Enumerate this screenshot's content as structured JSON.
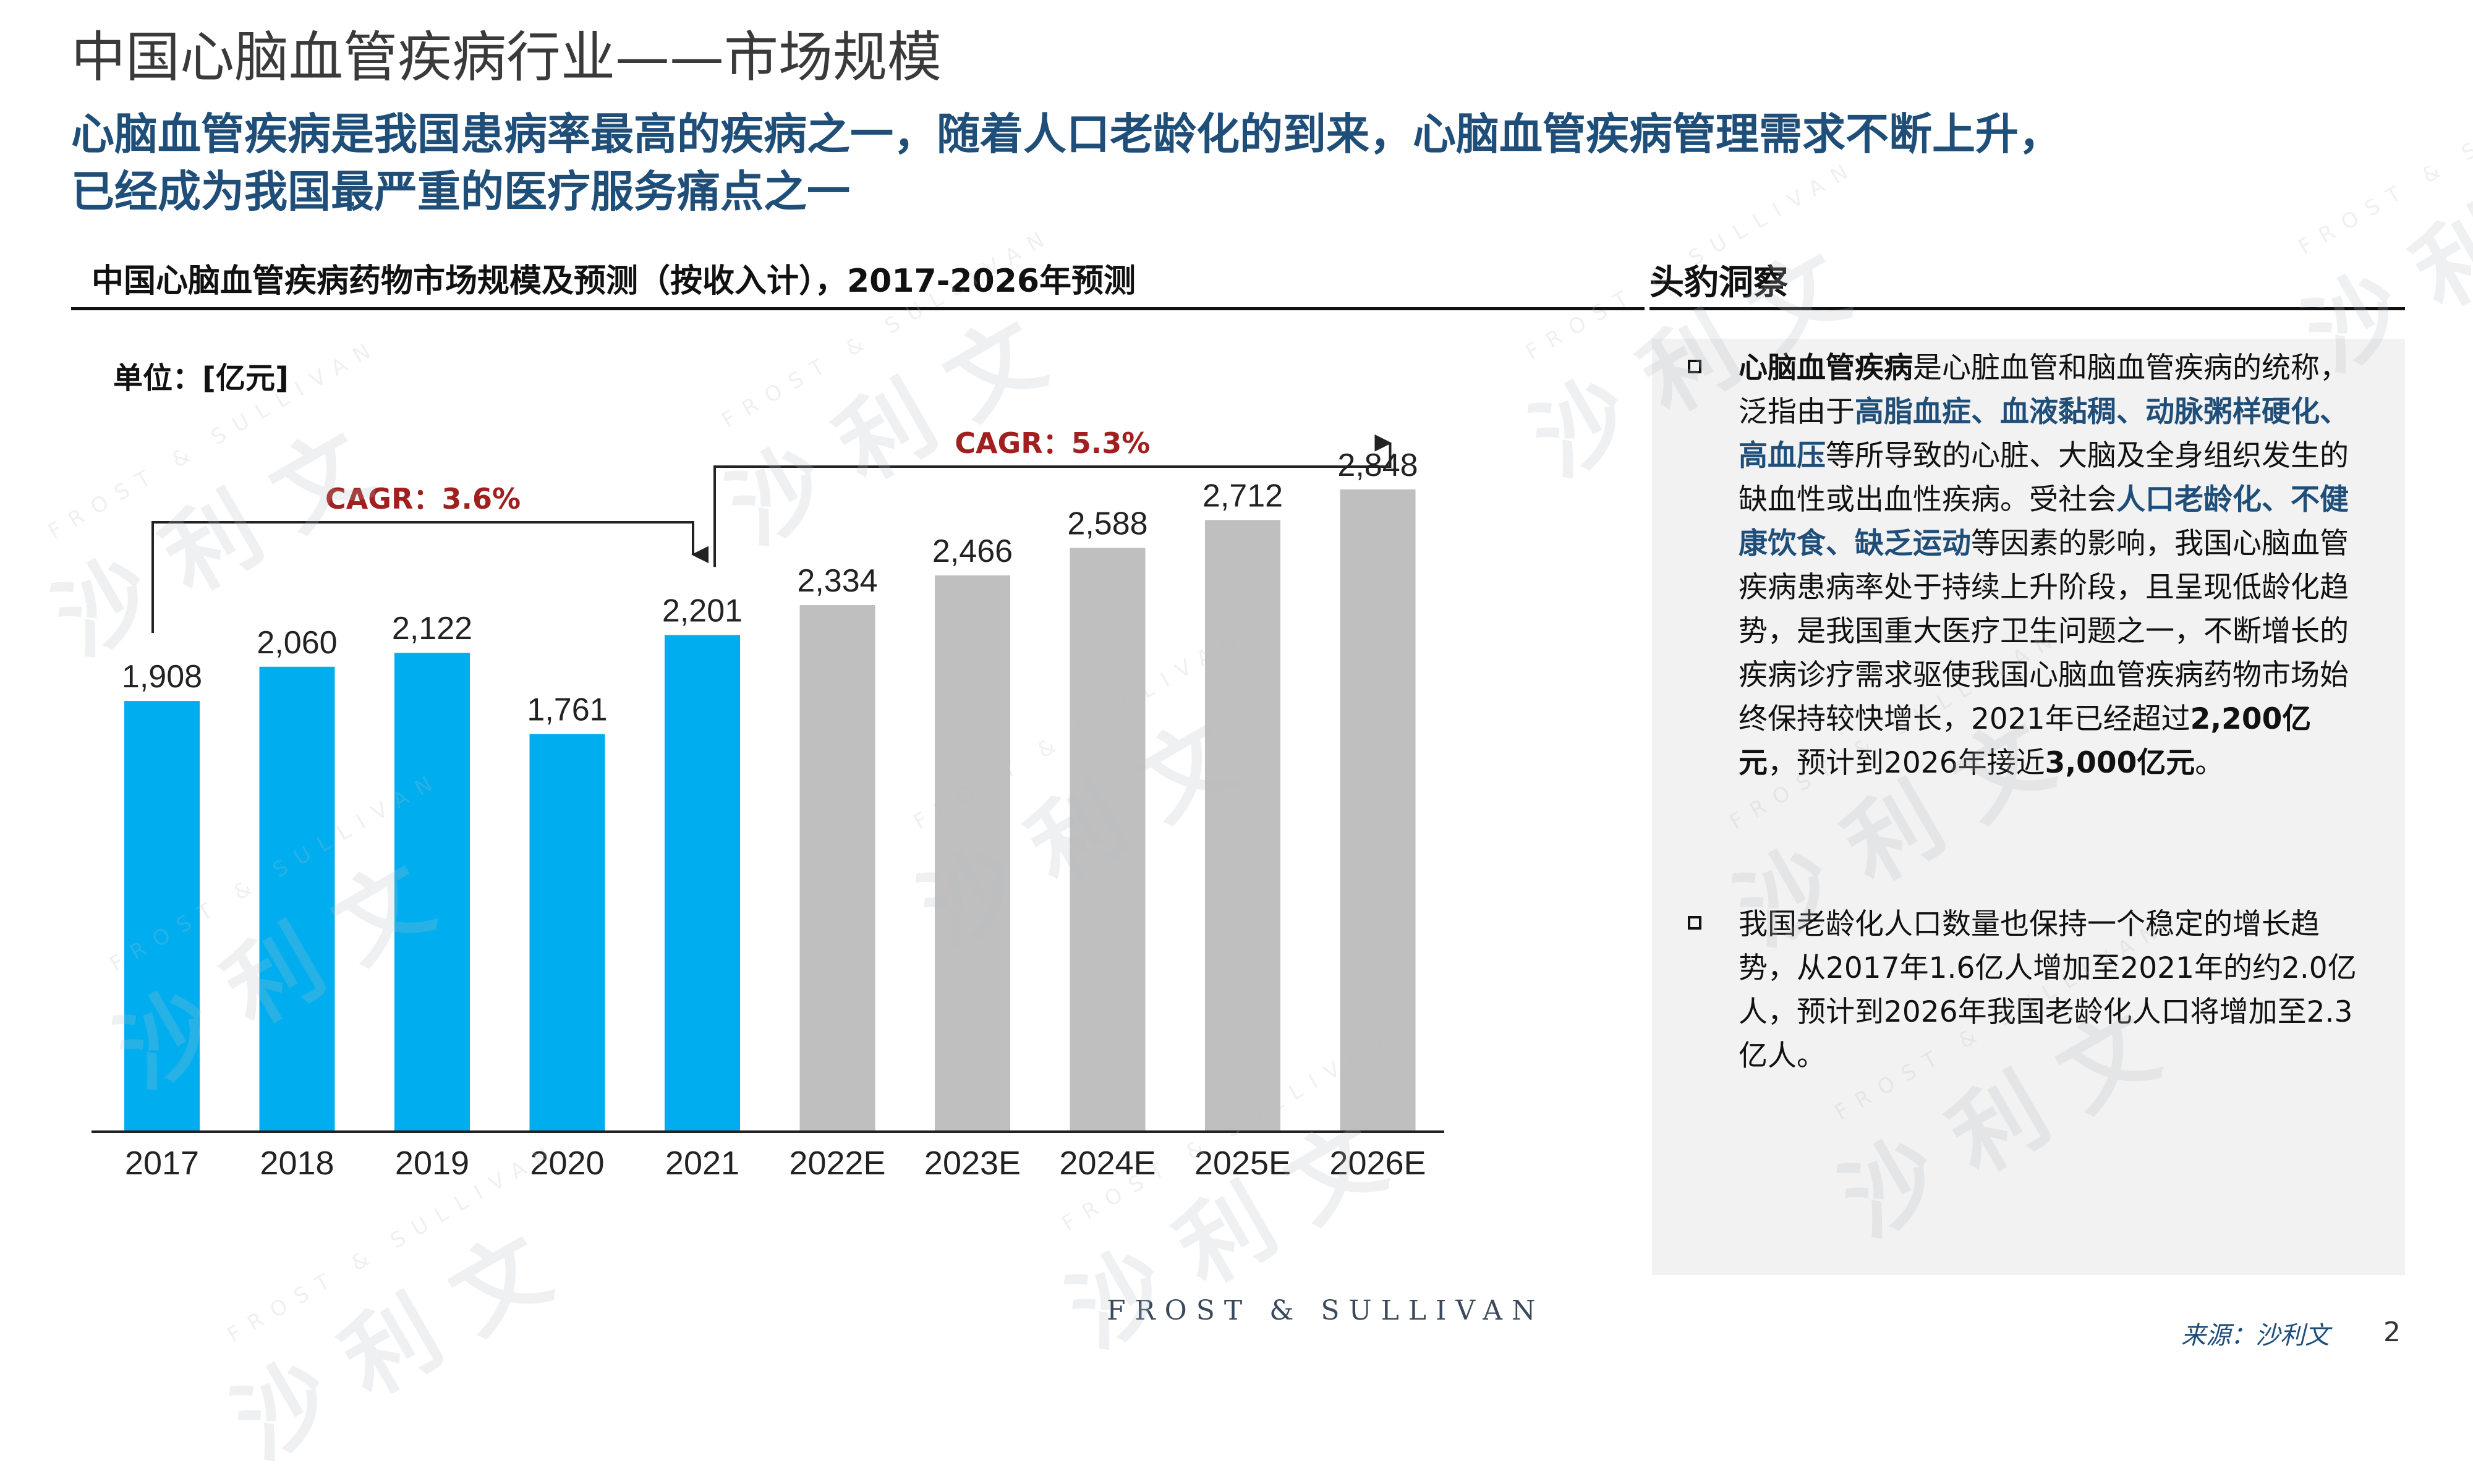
{
  "header": {
    "title": "中国心脑血管疾病行业——市场规模",
    "subtitle_line1": "心脑血管疾病是我国患病率最高的疾病之一，随着人口老龄化的到来，心脑血管疾病管理需求不断上升，",
    "subtitle_line2": "已经成为我国最严重的医疗服务痛点之一"
  },
  "chart_section": {
    "heading": "中国心脑血管疾病药物市场规模及预测（按收入计），2017-2026年预测",
    "unit": "单位：[亿元]"
  },
  "chart_data": {
    "type": "bar",
    "categories": [
      "2017",
      "2018",
      "2019",
      "2020",
      "2021",
      "2022E",
      "2023E",
      "2024E",
      "2025E",
      "2026E"
    ],
    "values": [
      1908,
      2060,
      2122,
      1761,
      2201,
      2334,
      2466,
      2588,
      2712,
      2848
    ],
    "value_labels": [
      "1,908",
      "2,060",
      "2,122",
      "1,761",
      "2,201",
      "2,334",
      "2,466",
      "2,588",
      "2,712",
      "2,848"
    ],
    "ylim": [
      0,
      3100
    ],
    "grid": false,
    "colors": {
      "historical": "#00aeef",
      "forecast": "#bfbfbf"
    },
    "annotations": [
      {
        "text": "CAGR：3.6%",
        "from": "2017",
        "to": "2021",
        "color": "#a0201f"
      },
      {
        "text": "CAGR：5.3%",
        "from": "2021",
        "to": "2026E",
        "color": "#a0201f"
      }
    ]
  },
  "insights": {
    "heading": "头豹洞察",
    "bullet1_html": "<b>心脑血管疾病</b>是心脏血管和脑血管疾病的统称，泛指由于<b class=\"em\">高脂血症、血液黏稠、动脉粥样硬化、高血压</b>等所导致的心脏、大脑及全身组织发生的缺血性或出血性疾病。受社会<b class=\"em\">人口老龄化、不健康饮食、缺乏运动</b>等因素的影响，我国心脑血管疾病患病率处于持续上升阶段，且呈现低龄化趋势，是我国重大医疗卫生问题之一，不断增长的疾病诊疗需求驱使我国心脑血管疾病药物市场始终保持较快增长，2021年已经超过<b>2,200亿元</b>，预计到2026年接近<b>3,000亿元</b>。",
    "bullet2": "我国老龄化人口数量也保持一个稳定的增长趋势，从2017年1.6亿人增加至2021年的约2.0亿人，预计到2026年我国老龄化人口将增加至2.3亿人。"
  },
  "footer": {
    "logo_text": "FROST & SULLIVAN",
    "source": "来源：沙利文",
    "page_number": "2"
  },
  "watermark": {
    "cn": "沙 利 文",
    "en": "FROST & SULLIVAN"
  }
}
